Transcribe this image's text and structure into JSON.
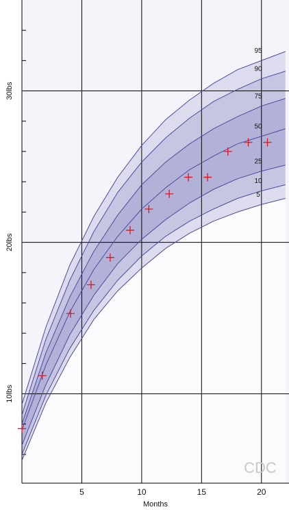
{
  "chart_data": {
    "type": "line",
    "x_label": "Months",
    "watermark": "CDC",
    "xlim": [
      0,
      22.3
    ],
    "ylim": [
      4.1,
      36
    ],
    "xticks": [
      5,
      10,
      15,
      20
    ],
    "yticks": [
      {
        "value": 10,
        "label": "10lbs"
      },
      {
        "value": 20,
        "label": "20lbs"
      },
      {
        "value": 30,
        "label": "30lbs"
      }
    ],
    "yminor_ticks": [
      6,
      8,
      12,
      14,
      16,
      18,
      22,
      24,
      26,
      28,
      32,
      34
    ],
    "grid": true,
    "x": [
      0,
      2,
      4,
      6,
      8,
      10,
      12,
      14,
      16,
      18,
      20,
      22
    ],
    "series": [
      {
        "name": "95",
        "color": "#4b4b9c",
        "fill": "#dcdcee",
        "values": [
          9.3,
          14.4,
          18.5,
          21.7,
          24.3,
          26.4,
          28.1,
          29.4,
          30.5,
          31.4,
          32.0,
          32.6
        ]
      },
      {
        "name": "90",
        "color": "#4b4b9c",
        "fill": "#c6c6e3",
        "values": [
          8.6,
          13.6,
          17.5,
          20.7,
          23.3,
          25.3,
          26.9,
          28.2,
          29.3,
          30.1,
          30.8,
          31.3
        ]
      },
      {
        "name": "75",
        "color": "#4b4b9c",
        "fill": "#b2b2d8",
        "values": [
          8.0,
          12.7,
          16.4,
          19.4,
          21.8,
          23.8,
          25.3,
          26.5,
          27.5,
          28.3,
          29.0,
          29.5
        ]
      },
      {
        "name": "50",
        "color": "#4b4b9c",
        "fill": "#b2b2d8",
        "values": [
          7.6,
          11.9,
          15.4,
          18.2,
          20.4,
          22.2,
          23.6,
          24.8,
          25.7,
          26.5,
          27.0,
          27.5
        ]
      },
      {
        "name": "25",
        "color": "#4b4b9c",
        "fill": "#c6c6e3",
        "values": [
          6.6,
          10.6,
          13.9,
          16.5,
          18.6,
          20.2,
          21.5,
          22.6,
          23.5,
          24.2,
          24.7,
          25.1
        ]
      },
      {
        "name": "10",
        "color": "#4b4b9c",
        "fill": "#dcdcee",
        "values": [
          6.0,
          9.9,
          13.0,
          15.5,
          17.5,
          19.1,
          20.4,
          21.4,
          22.2,
          22.9,
          23.4,
          23.8
        ]
      },
      {
        "name": "5",
        "color": "#4b4b9c",
        "values": [
          5.6,
          9.4,
          12.4,
          14.9,
          16.8,
          18.3,
          19.6,
          20.6,
          21.4,
          22.0,
          22.5,
          22.9
        ]
      }
    ],
    "points": {
      "color": "#e8101a",
      "x": [
        0,
        1.7,
        4.06,
        5.77,
        7.37,
        9.03,
        10.6,
        12.3,
        13.9,
        15.5,
        17.2,
        18.9,
        20.5
      ],
      "values": [
        7.7,
        11.2,
        15.3,
        17.2,
        19.0,
        20.8,
        22.2,
        23.2,
        24.3,
        24.3,
        26.0,
        26.6,
        26.6
      ]
    }
  }
}
